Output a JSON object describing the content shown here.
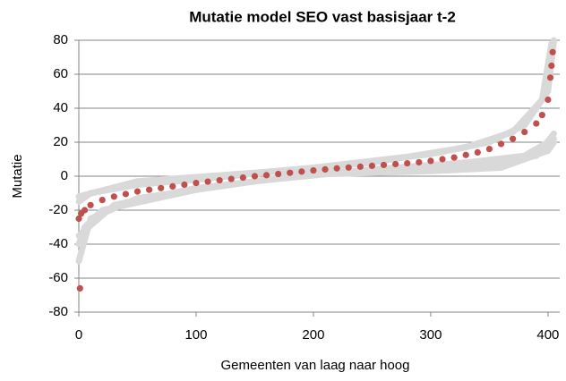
{
  "chart_data": {
    "type": "scatter",
    "title": "Mutatie model SEO vast basisjaar t-2",
    "x_label": "Gemeenten van laag naar hoog",
    "y_label": "Mutatie",
    "xlim": [
      0,
      410
    ],
    "xticks": [
      0,
      100,
      200,
      300,
      400
    ],
    "ylim": [
      -80,
      80
    ],
    "yticks": [
      -80,
      -60,
      -40,
      -20,
      0,
      20,
      40,
      60,
      80
    ],
    "grid": true,
    "series": [
      {
        "color": "#d9d9d9",
        "x": [
          0,
          10,
          50,
          100,
          200,
          300,
          350,
          380,
          400,
          405
        ],
        "values": [
          -15,
          -10,
          -5,
          -2,
          5,
          13,
          20,
          30,
          50,
          80
        ]
      },
      {
        "color": "#d9d9d9",
        "x": [
          0,
          50,
          150,
          250,
          330,
          370,
          395,
          403
        ],
        "values": [
          -12,
          -3,
          2,
          8,
          17,
          26,
          45,
          78
        ]
      },
      {
        "color": "#d9d9d9",
        "x": [
          0,
          5,
          20,
          100,
          200,
          300,
          350,
          390,
          405
        ],
        "values": [
          -40,
          -30,
          -20,
          -8,
          2,
          5,
          7,
          12,
          25
        ]
      },
      {
        "color": "#d9d9d9",
        "x": [
          0,
          30,
          100,
          200,
          300,
          360,
          400,
          405
        ],
        "values": [
          -35,
          -17,
          -7,
          1,
          3,
          5,
          15,
          20
        ]
      },
      {
        "color": "#d9d9d9",
        "x": [
          0,
          10,
          50,
          150,
          250,
          330,
          380,
          405
        ],
        "values": [
          -50,
          -25,
          -13,
          -3,
          4,
          8,
          12,
          22
        ]
      },
      {
        "color": "#c0504d",
        "x": [
          0,
          10,
          20,
          30,
          40,
          50,
          60,
          70,
          80,
          90,
          100,
          110,
          120,
          130,
          140,
          150,
          160,
          170,
          180,
          190,
          200,
          210,
          220,
          230,
          240,
          250,
          260,
          270,
          280,
          290,
          300,
          310,
          320,
          330,
          340,
          350,
          360,
          370,
          380,
          390,
          400,
          2,
          5,
          395,
          402,
          403,
          404,
          1
        ],
        "values": [
          -25,
          -17,
          -14,
          -12,
          -10.5,
          -9,
          -8,
          -7,
          -6,
          -5,
          -4,
          -3.2,
          -2.4,
          -1.6,
          -0.8,
          0,
          0.6,
          1.3,
          2,
          2.7,
          3.4,
          4,
          4.6,
          5.1,
          5.6,
          6.1,
          6.6,
          7.1,
          7.6,
          8.2,
          9,
          10,
          11,
          12.5,
          14,
          16,
          19,
          22,
          26,
          31,
          45,
          -22,
          -20,
          36,
          58,
          65,
          73,
          -66
        ]
      }
    ]
  }
}
